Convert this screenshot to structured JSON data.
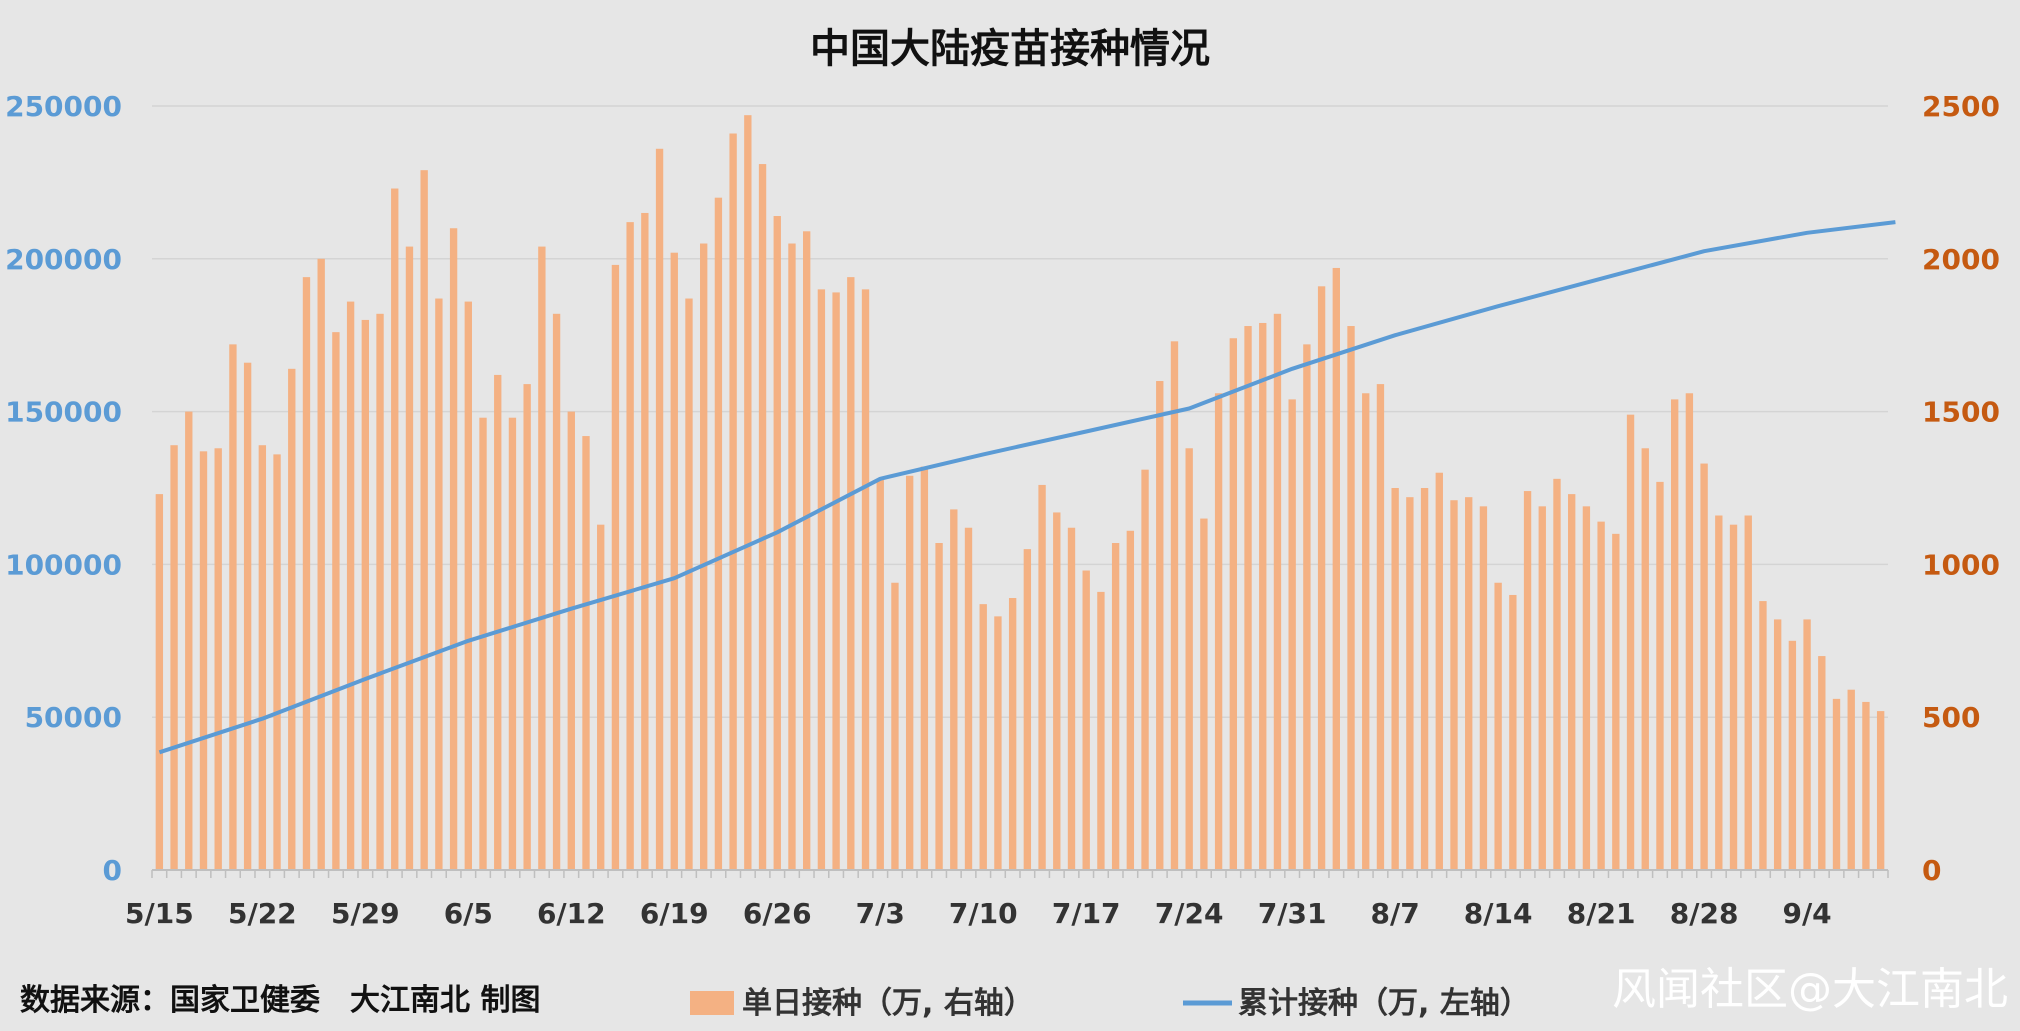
{
  "chart_data": {
    "type": "bar+line",
    "title": "中国大陆疫苗接种情况",
    "x_ticks": [
      "5/15",
      "5/22",
      "5/29",
      "6/5",
      "6/12",
      "6/19",
      "6/26",
      "7/3",
      "7/10",
      "7/17",
      "7/24",
      "7/31",
      "8/7",
      "8/14",
      "8/21",
      "8/28",
      "9/4"
    ],
    "y_left": {
      "ylim": [
        0,
        250000
      ],
      "ticks": [
        "0",
        "50000",
        "100000",
        "150000",
        "200000",
        "250000"
      ]
    },
    "y_right": {
      "ylim": [
        0,
        2500
      ],
      "ticks": [
        "0",
        "500",
        "1000",
        "1500",
        "2000",
        "2500"
      ]
    },
    "legend": [
      "单日接种（万, 右轴）",
      "累计接种（万, 左轴）"
    ],
    "colors": {
      "bar": "#f4b183",
      "line": "#5b9bd5",
      "left_axis": "#5b9bd5",
      "right_axis": "#c55a11"
    },
    "series": [
      {
        "name": "单日接种（万, 右轴）",
        "type": "bar",
        "axis": "right",
        "values": [
          1230,
          1390,
          1500,
          1370,
          1380,
          1720,
          1660,
          1390,
          1360,
          1640,
          1940,
          2000,
          1760,
          1860,
          1800,
          1820,
          2230,
          2040,
          2290,
          1870,
          2100,
          1860,
          1480,
          1620,
          1480,
          1590,
          2040,
          1820,
          1500,
          1420,
          1130,
          1980,
          2120,
          2150,
          2360,
          2020,
          1870,
          2050,
          2200,
          2410,
          2470,
          2310,
          2140,
          2050,
          2090,
          1900,
          1890,
          1940,
          1900,
          1280,
          940,
          1290,
          1320,
          1070,
          1180,
          1120,
          870,
          830,
          890,
          1050,
          1260,
          1170,
          1120,
          980,
          910,
          1070,
          1110,
          1310,
          1600,
          1730,
          1380,
          1150,
          1560,
          1740,
          1780,
          1790,
          1820,
          1540,
          1720,
          1910,
          1970,
          1780,
          1560,
          1590,
          1250,
          1220,
          1250,
          1300,
          1210,
          1220,
          1190,
          940,
          900,
          1240,
          1190,
          1280,
          1230,
          1190,
          1140,
          1100,
          1490,
          1380,
          1270,
          1540,
          1560,
          1330,
          1160,
          1130,
          1160,
          880,
          820,
          750,
          820,
          700,
          560,
          590,
          550,
          520
        ]
      },
      {
        "name": "累计接种（万, 左轴）",
        "type": "line",
        "axis": "left",
        "points": [
          [
            0,
            38500
          ],
          [
            7,
            49500
          ],
          [
            14,
            62500
          ],
          [
            21,
            75000
          ],
          [
            28,
            85500
          ],
          [
            35,
            95500
          ],
          [
            42,
            110500
          ],
          [
            49,
            128000
          ],
          [
            56,
            136000
          ],
          [
            63,
            143500
          ],
          [
            70,
            151000
          ],
          [
            77,
            164000
          ],
          [
            84,
            175000
          ],
          [
            91,
            184500
          ],
          [
            98,
            193500
          ],
          [
            105,
            202500
          ],
          [
            112,
            208500
          ],
          [
            118,
            212000
          ]
        ]
      }
    ]
  },
  "footer": {
    "source": "数据来源：国家卫健委　大江南北 制图",
    "watermark": "风闻社区@大江南北"
  }
}
